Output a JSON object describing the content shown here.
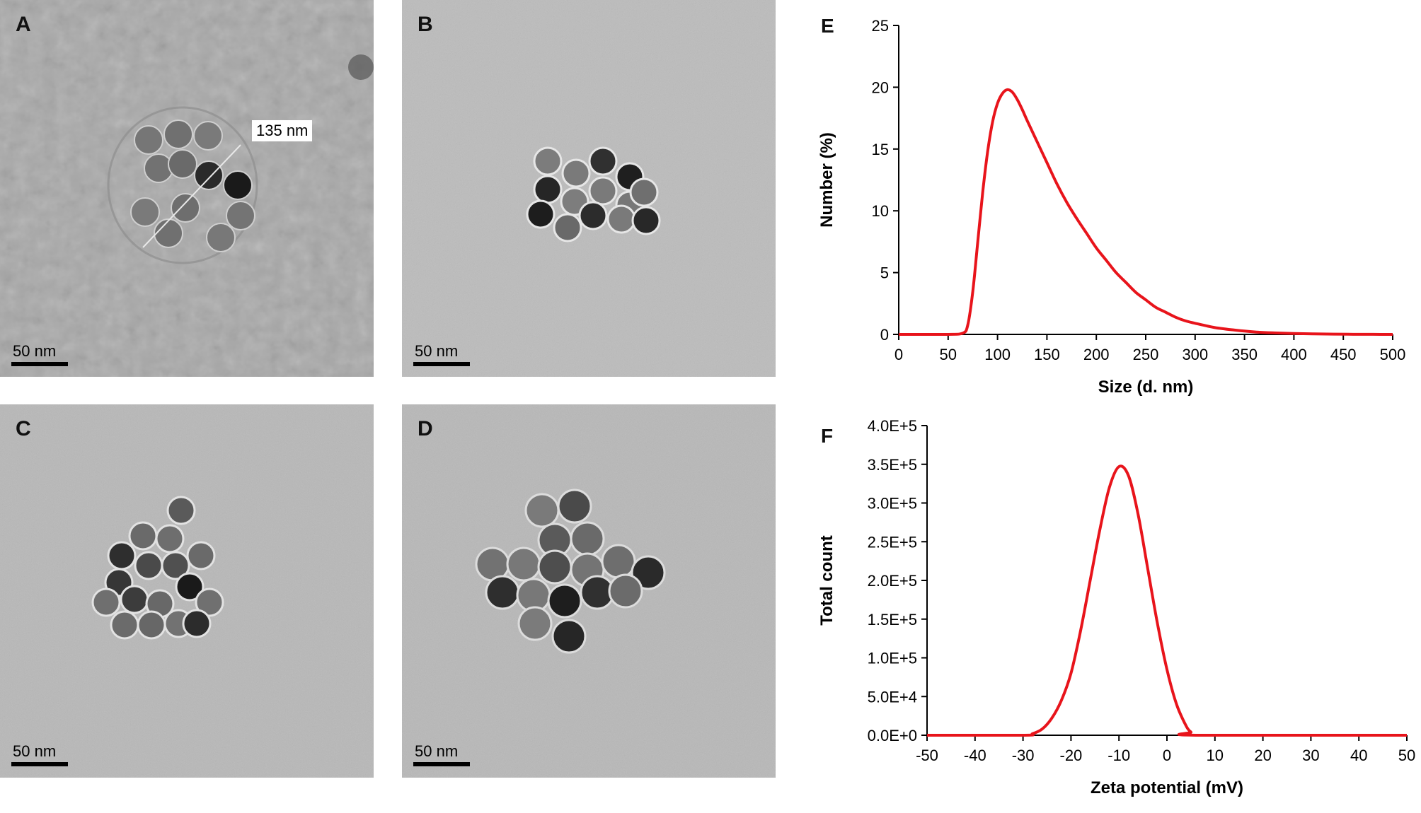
{
  "panels": {
    "A": {
      "letter": "A",
      "scale_label": "50 nm",
      "annotation": "135 nm"
    },
    "B": {
      "letter": "B",
      "scale_label": "50 nm"
    },
    "C": {
      "letter": "C",
      "scale_label": "50 nm"
    },
    "D": {
      "letter": "D",
      "scale_label": "50 nm"
    }
  },
  "chart_data": [
    {
      "panel": "E",
      "type": "line",
      "xlabel": "Size (d. nm)",
      "ylabel": "Number (%)",
      "xlim": [
        0,
        500
      ],
      "ylim": [
        0,
        25
      ],
      "xticks": [
        "0",
        "50",
        "100",
        "150",
        "200",
        "250",
        "300",
        "350",
        "400",
        "450",
        "500"
      ],
      "yticks": [
        "0",
        "5",
        "10",
        "15",
        "20",
        "25"
      ],
      "grid": false,
      "color": "#e8141b",
      "series": [
        {
          "x": [
            0,
            50,
            65,
            70,
            75,
            80,
            85,
            90,
            95,
            100,
            105,
            110,
            115,
            120,
            125,
            130,
            140,
            150,
            160,
            170,
            180,
            190,
            200,
            210,
            220,
            230,
            240,
            250,
            260,
            270,
            280,
            290,
            300,
            320,
            340,
            360,
            380,
            400,
            420,
            440,
            460,
            480,
            500
          ],
          "y": [
            0,
            0,
            0.1,
            0.8,
            3.5,
            7.5,
            11.5,
            14.8,
            17.2,
            18.7,
            19.5,
            19.8,
            19.6,
            19.0,
            18.2,
            17.3,
            15.6,
            13.9,
            12.2,
            10.7,
            9.4,
            8.2,
            7.0,
            6.0,
            5.0,
            4.2,
            3.4,
            2.8,
            2.2,
            1.8,
            1.4,
            1.1,
            0.9,
            0.55,
            0.35,
            0.2,
            0.12,
            0.07,
            0.04,
            0.02,
            0.01,
            0.005,
            0
          ]
        }
      ]
    },
    {
      "panel": "F",
      "type": "line",
      "xlabel": "Zeta potential (mV)",
      "ylabel": "Total count",
      "xlim": [
        -50,
        50
      ],
      "ylim": [
        0,
        400000
      ],
      "xticks": [
        "-50",
        "-40",
        "-30",
        "-20",
        "-10",
        "0",
        "10",
        "20",
        "30",
        "40",
        "50"
      ],
      "yticks": [
        "0.0E+0",
        "5.0E+4",
        "1.0E+5",
        "1.5E+5",
        "2.0E+5",
        "2.5E+5",
        "3.0E+5",
        "3.5E+5",
        "4.0E+5"
      ],
      "grid": false,
      "color": "#e8141b",
      "series": [
        {
          "x": [
            -50,
            -30,
            -28,
            -26,
            -24,
            -22,
            -20,
            -18,
            -16,
            -14,
            -12,
            -10,
            -8,
            -6,
            -4,
            -2,
            0,
            2,
            4,
            5,
            6,
            50
          ],
          "y": [
            0,
            0,
            2000,
            8000,
            22000,
            45000,
            80000,
            135000,
            200000,
            265000,
            320000,
            347000,
            335000,
            285000,
            215000,
            145000,
            85000,
            40000,
            12000,
            4000,
            0,
            0
          ]
        }
      ]
    }
  ],
  "colors": {
    "curve": "#e8141b",
    "tem_bg": "#b8b8b8"
  }
}
